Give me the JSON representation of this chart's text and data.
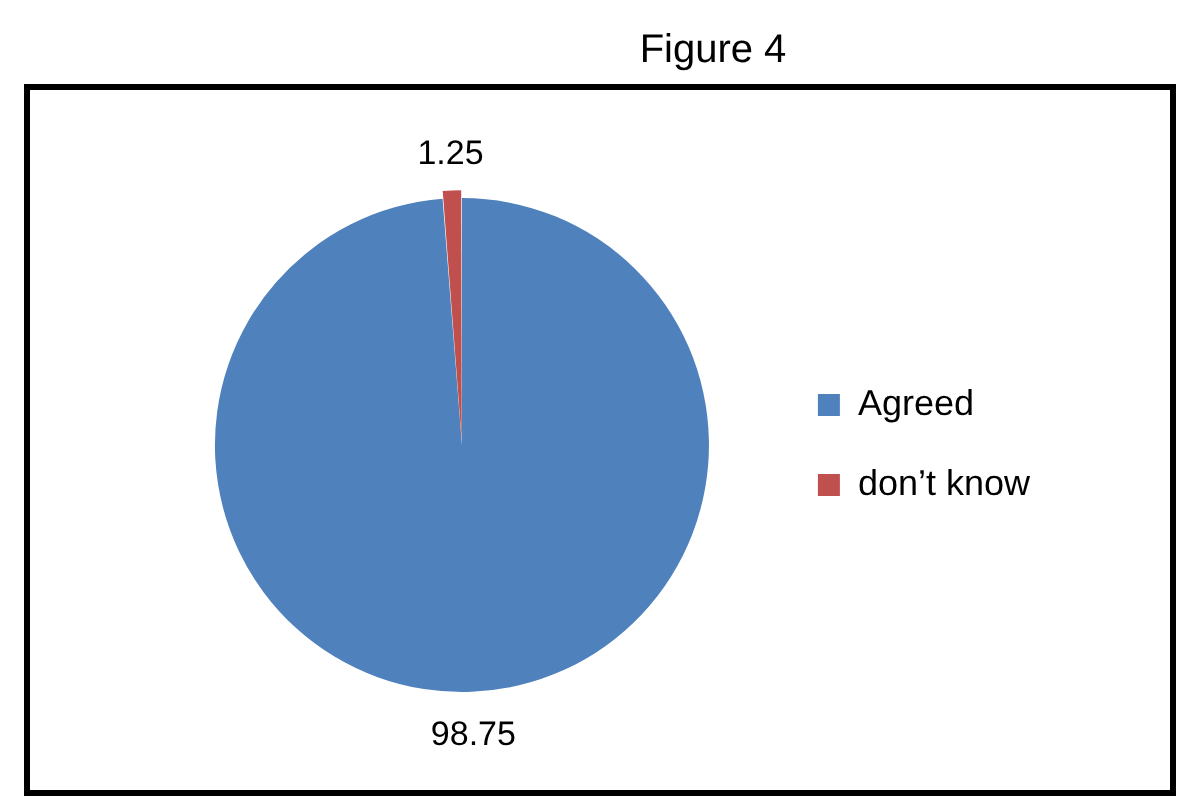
{
  "chart_data": {
    "type": "pie",
    "title": "Figure 4",
    "categories": [
      "Agreed",
      "don’t know"
    ],
    "values": [
      98.75,
      1.25
    ],
    "colors": [
      "#4f81bd",
      "#c0504d"
    ],
    "data_labels": true,
    "legend": "right"
  }
}
